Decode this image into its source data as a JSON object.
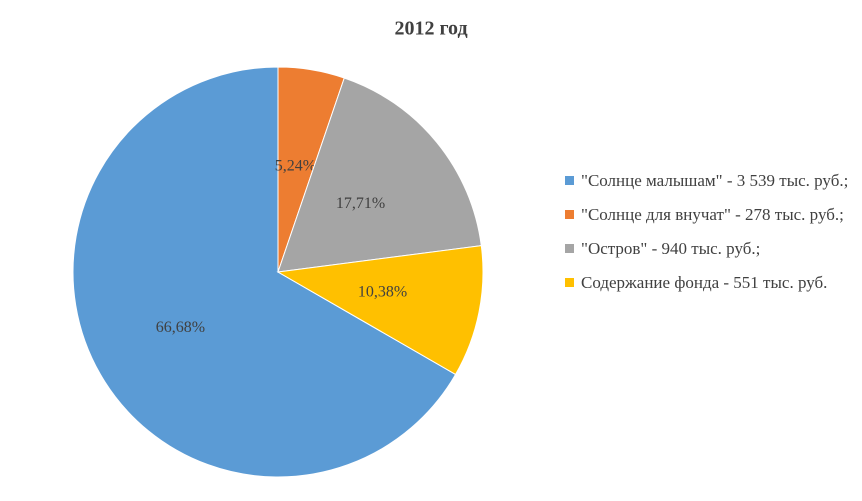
{
  "chart_data": {
    "type": "pie",
    "title": "2012 год",
    "categories": [
      "\"Солнце малышам\" - 3 539 тыс. руб.;",
      "\"Солнце для внучат\" - 278 тыс. руб.;",
      "\"Остров\" - 940 тыс. руб.;",
      "Содержание фонда - 551 тыс. руб."
    ],
    "values": [
      66.68,
      5.24,
      17.71,
      10.38
    ],
    "value_labels": [
      "66,68%",
      "5,24%",
      "17,71%",
      "10,38%"
    ],
    "colors": [
      "#5b9bd5",
      "#ed7d31",
      "#a5a5a5",
      "#ffc000"
    ],
    "legend": "right"
  }
}
